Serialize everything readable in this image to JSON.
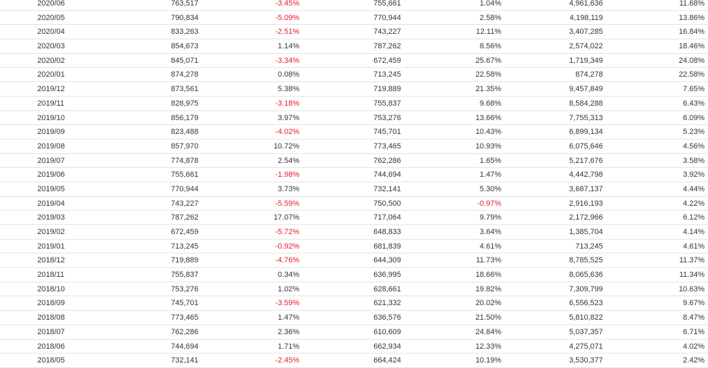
{
  "colors": {
    "text": "#333333",
    "negative": "#e8192c",
    "row_border": "#e4e4e4"
  },
  "table": {
    "rows": [
      [
        "2020/06",
        "763,517",
        "-3.45%",
        "755,661",
        "1.04%",
        "4,961,636",
        "11.68%"
      ],
      [
        "2020/05",
        "790,834",
        "-5.09%",
        "770,944",
        "2.58%",
        "4,198,119",
        "13.86%"
      ],
      [
        "2020/04",
        "833,263",
        "-2.51%",
        "743,227",
        "12.11%",
        "3,407,285",
        "16.84%"
      ],
      [
        "2020/03",
        "854,673",
        "1.14%",
        "787,262",
        "8.56%",
        "2,574,022",
        "18.46%"
      ],
      [
        "2020/02",
        "845,071",
        "-3.34%",
        "672,459",
        "25.67%",
        "1,719,349",
        "24.08%"
      ],
      [
        "2020/01",
        "874,278",
        "0.08%",
        "713,245",
        "22.58%",
        "874,278",
        "22.58%"
      ],
      [
        "2019/12",
        "873,561",
        "5.38%",
        "719,889",
        "21.35%",
        "9,457,849",
        "7.65%"
      ],
      [
        "2019/11",
        "828,975",
        "-3.18%",
        "755,837",
        "9.68%",
        "8,584,288",
        "6.43%"
      ],
      [
        "2019/10",
        "856,179",
        "3.97%",
        "753,276",
        "13.66%",
        "7,755,313",
        "6.09%"
      ],
      [
        "2019/09",
        "823,488",
        "-4.02%",
        "745,701",
        "10.43%",
        "6,899,134",
        "5.23%"
      ],
      [
        "2019/08",
        "857,970",
        "10.72%",
        "773,465",
        "10.93%",
        "6,075,646",
        "4.56%"
      ],
      [
        "2019/07",
        "774,878",
        "2.54%",
        "762,286",
        "1.65%",
        "5,217,676",
        "3.58%"
      ],
      [
        "2019/06",
        "755,661",
        "-1.98%",
        "744,694",
        "1.47%",
        "4,442,798",
        "3.92%"
      ],
      [
        "2019/05",
        "770,944",
        "3.73%",
        "732,141",
        "5.30%",
        "3,687,137",
        "4.44%"
      ],
      [
        "2019/04",
        "743,227",
        "-5.59%",
        "750,500",
        "-0.97%",
        "2,916,193",
        "4.22%"
      ],
      [
        "2019/03",
        "787,262",
        "17.07%",
        "717,064",
        "9.79%",
        "2,172,966",
        "6.12%"
      ],
      [
        "2019/02",
        "672,459",
        "-5.72%",
        "648,833",
        "3.64%",
        "1,385,704",
        "4.14%"
      ],
      [
        "2019/01",
        "713,245",
        "-0.92%",
        "681,839",
        "4.61%",
        "713,245",
        "4.61%"
      ],
      [
        "2018/12",
        "719,889",
        "-4.76%",
        "644,309",
        "11.73%",
        "8,785,525",
        "11.37%"
      ],
      [
        "2018/11",
        "755,837",
        "0.34%",
        "636,995",
        "18.66%",
        "8,065,636",
        "11.34%"
      ],
      [
        "2018/10",
        "753,276",
        "1.02%",
        "628,661",
        "19.82%",
        "7,309,799",
        "10.63%"
      ],
      [
        "2018/09",
        "745,701",
        "-3.59%",
        "621,332",
        "20.02%",
        "6,556,523",
        "9.67%"
      ],
      [
        "2018/08",
        "773,465",
        "1.47%",
        "636,576",
        "21.50%",
        "5,810,822",
        "8.47%"
      ],
      [
        "2018/07",
        "762,286",
        "2.36%",
        "610,609",
        "24.84%",
        "5,037,357",
        "6.71%"
      ],
      [
        "2018/06",
        "744,694",
        "1.71%",
        "662,934",
        "12.33%",
        "4,275,071",
        "4.02%"
      ],
      [
        "2018/05",
        "732,141",
        "-2.45%",
        "664,424",
        "10.19%",
        "3,530,377",
        "2.42%"
      ]
    ]
  }
}
